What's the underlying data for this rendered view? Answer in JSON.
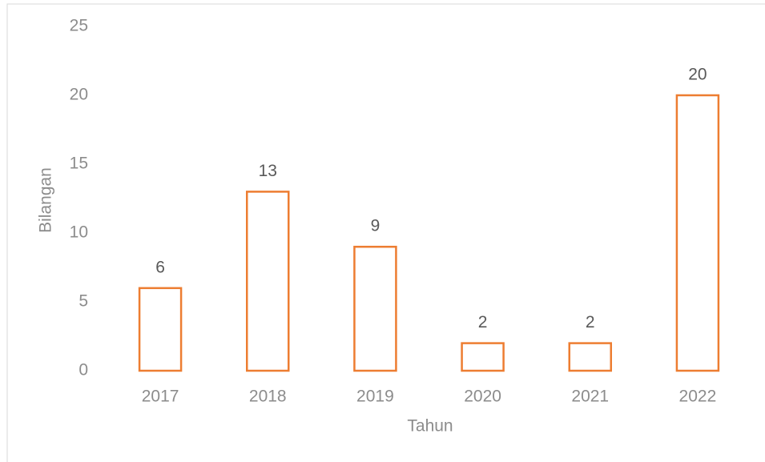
{
  "chart_data": {
    "type": "bar",
    "categories": [
      "2017",
      "2018",
      "2019",
      "2020",
      "2021",
      "2022"
    ],
    "values": [
      6,
      13,
      9,
      2,
      2,
      20
    ],
    "color": "#ed7d31",
    "x_label": "Tahun",
    "y_label": "Bilangan",
    "ylim": [
      0,
      25
    ],
    "yticks": [
      0,
      5,
      10,
      15,
      20,
      25
    ],
    "grid": false
  }
}
